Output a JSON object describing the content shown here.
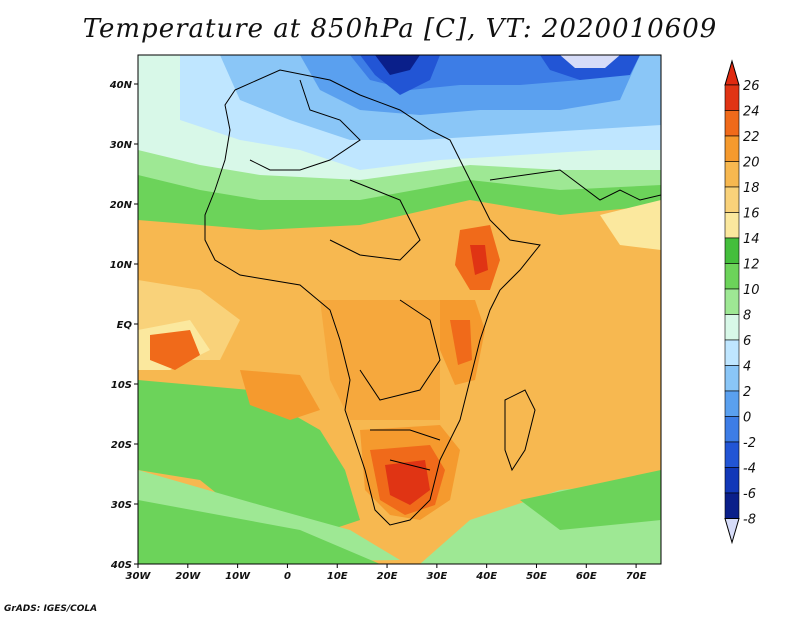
{
  "title": "Temperature at 850hPa [C], VT: 2020010609",
  "credit": "GrADS: IGES/COLA",
  "map": {
    "lon_labels": [
      "30W",
      "20W",
      "10W",
      "0",
      "10E",
      "20E",
      "30E",
      "40E",
      "50E",
      "60E",
      "70E"
    ],
    "lat_labels": [
      "40N",
      "30N",
      "20N",
      "10N",
      "EQ",
      "10S",
      "20S",
      "30S",
      "40S"
    ]
  },
  "colorbar": {
    "labels": [
      "26",
      "24",
      "22",
      "20",
      "18",
      "16",
      "14",
      "12",
      "10",
      "8",
      "6",
      "4",
      "2",
      "0",
      "-2",
      "-4",
      "-6",
      "-8"
    ],
    "colors": [
      "#e03414",
      "#f06a1a",
      "#f59a2e",
      "#f7b850",
      "#f9d27a",
      "#fbe89e",
      "#44be3c",
      "#6cd35a",
      "#9ee894",
      "#d8f8e8",
      "#bfe6ff",
      "#8ac6f7",
      "#5aa0ef",
      "#3d7de6",
      "#2255d5",
      "#1238b8",
      "#0a1f8a",
      "#0a1060"
    ],
    "top_color": "#e02a10",
    "bottom_color": "#d6dcf8"
  }
}
